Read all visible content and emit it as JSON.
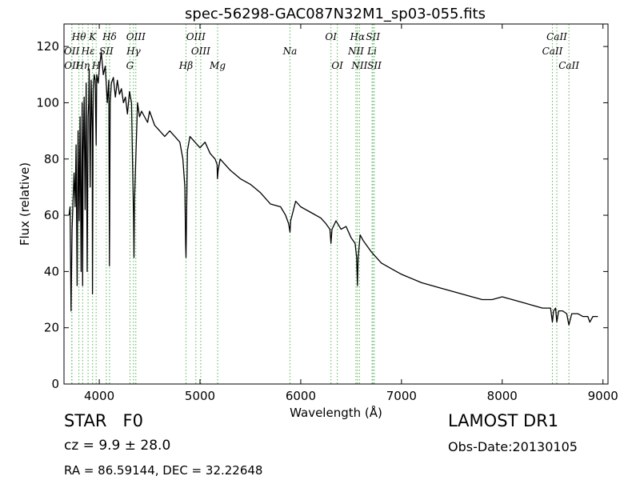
{
  "chart_data": {
    "type": "line",
    "title": "spec-56298-GAC087N32M1_sp03-055.fits",
    "xlabel": "Wavelength (Å)",
    "ylabel": "Flux (relative)",
    "xlim": [
      3650,
      9050
    ],
    "ylim": [
      0,
      128
    ],
    "xticks": [
      4000,
      5000,
      6000,
      7000,
      8000,
      9000
    ],
    "yticks": [
      0,
      20,
      40,
      60,
      80,
      100,
      120
    ],
    "grid": false,
    "series": [
      {
        "color": "#000000",
        "x": [
          3700,
          3710,
          3720,
          3730,
          3740,
          3750,
          3760,
          3770,
          3780,
          3790,
          3800,
          3810,
          3820,
          3830,
          3835,
          3840,
          3850,
          3860,
          3870,
          3880,
          3889,
          3895,
          3900,
          3910,
          3920,
          3930,
          3933,
          3940,
          3950,
          3960,
          3969,
          3975,
          3990,
          4000,
          4020,
          4040,
          4060,
          4080,
          4095,
          4101,
          4108,
          4120,
          4140,
          4160,
          4180,
          4200,
          4220,
          4240,
          4260,
          4280,
          4300,
          4320,
          4330,
          4340,
          4345,
          4350,
          4380,
          4400,
          4420,
          4450,
          4480,
          4500,
          4550,
          4600,
          4650,
          4700,
          4750,
          4800,
          4830,
          4850,
          4857,
          4861,
          4865,
          4875,
          4900,
          4950,
          5000,
          5050,
          5100,
          5150,
          5170,
          5173,
          5180,
          5200,
          5300,
          5400,
          5500,
          5600,
          5700,
          5800,
          5850,
          5880,
          5893,
          5900,
          5950,
          6000,
          6100,
          6200,
          6250,
          6290,
          6300,
          6310,
          6350,
          6400,
          6450,
          6500,
          6540,
          6555,
          6563,
          6570,
          6590,
          6620,
          6700,
          6800,
          6900,
          7000,
          7200,
          7400,
          7500,
          7600,
          7700,
          7800,
          7900,
          8000,
          8100,
          8200,
          8300,
          8400,
          8480,
          8498,
          8510,
          8530,
          8542,
          8560,
          8600,
          8640,
          8662,
          8690,
          8750,
          8800,
          8850,
          8870,
          8900,
          8950
        ],
        "y": [
          60,
          63,
          26,
          55,
          65,
          75,
          63,
          85,
          35,
          90,
          58,
          95,
          40,
          100,
          35,
          80,
          102,
          62,
          107,
          40,
          95,
          100,
          112,
          70,
          108,
          90,
          32,
          105,
          110,
          108,
          85,
          110,
          107,
          112,
          118,
          110,
          113,
          100,
          108,
          42,
          100,
          107,
          109,
          102,
          108,
          103,
          105,
          100,
          102,
          96,
          104,
          100,
          80,
          60,
          45,
          65,
          100,
          95,
          97,
          95,
          93,
          97,
          92,
          90,
          88,
          90,
          88,
          86,
          80,
          70,
          50,
          45,
          55,
          83,
          88,
          86,
          84,
          86,
          82,
          80,
          78,
          73,
          76,
          80,
          76,
          73,
          71,
          68,
          64,
          63,
          60,
          57,
          54,
          58,
          65,
          63,
          61,
          59,
          57,
          55,
          50,
          55,
          58,
          55,
          56,
          52,
          50,
          45,
          35,
          45,
          53,
          51,
          47,
          43,
          41,
          39,
          36,
          34,
          33,
          32,
          31,
          30,
          30,
          31,
          30,
          29,
          28,
          27,
          27,
          22,
          26,
          27,
          22,
          26,
          26,
          25,
          21,
          25,
          25,
          24,
          24,
          22,
          24,
          24
        ]
      }
    ],
    "annotations": [
      {
        "label": "Hθ",
        "x": 3798,
        "row": "upper"
      },
      {
        "label": "K",
        "x": 3934,
        "row": "upper"
      },
      {
        "label": "Hδ",
        "x": 4102,
        "row": "upper"
      },
      {
        "label": "OIII",
        "x": 4363,
        "row": "upper"
      },
      {
        "label": "OIII",
        "x": 4959,
        "row": "upper"
      },
      {
        "label": "OI",
        "x": 6300,
        "row": "upper"
      },
      {
        "label": "Hα",
        "x": 6563,
        "row": "upper"
      },
      {
        "label": "SII",
        "x": 6717,
        "row": "upper"
      },
      {
        "label": "CaII",
        "x": 8542,
        "row": "upper"
      },
      {
        "label": "OII",
        "x": 3727,
        "row": "middle"
      },
      {
        "label": "Hε",
        "x": 3889,
        "row": "middle"
      },
      {
        "label": "SII",
        "x": 4070,
        "row": "middle"
      },
      {
        "label": "Hγ",
        "x": 4340,
        "row": "middle"
      },
      {
        "label": "OIII",
        "x": 5007,
        "row": "middle"
      },
      {
        "label": "Na",
        "x": 5893,
        "row": "middle"
      },
      {
        "label": "NII",
        "x": 6548,
        "row": "middle"
      },
      {
        "label": "Li",
        "x": 6708,
        "row": "middle"
      },
      {
        "label": "CaII",
        "x": 8498,
        "row": "middle"
      },
      {
        "label": "OII",
        "x": 3729,
        "row": "lower"
      },
      {
        "label": "Hη",
        "x": 3835,
        "row": "lower"
      },
      {
        "label": "H",
        "x": 3969,
        "row": "lower"
      },
      {
        "label": "G",
        "x": 4305,
        "row": "lower"
      },
      {
        "label": "Hβ",
        "x": 4861,
        "row": "lower"
      },
      {
        "label": "Mg",
        "x": 5175,
        "row": "lower"
      },
      {
        "label": "OI",
        "x": 6363,
        "row": "lower"
      },
      {
        "label": "NII",
        "x": 6583,
        "row": "lower"
      },
      {
        "label": "SII",
        "x": 6731,
        "row": "lower"
      },
      {
        "label": "CaII",
        "x": 8662,
        "row": "lower"
      }
    ],
    "annotation_color": "#55b355"
  },
  "info": {
    "object_class": "STAR   F0",
    "survey": "LAMOST DR1",
    "cz": "cz = 9.9 ± 28.0",
    "obs_date": "Obs-Date:20130105",
    "radec": "RA = 86.59144, DEC = 32.22648"
  }
}
